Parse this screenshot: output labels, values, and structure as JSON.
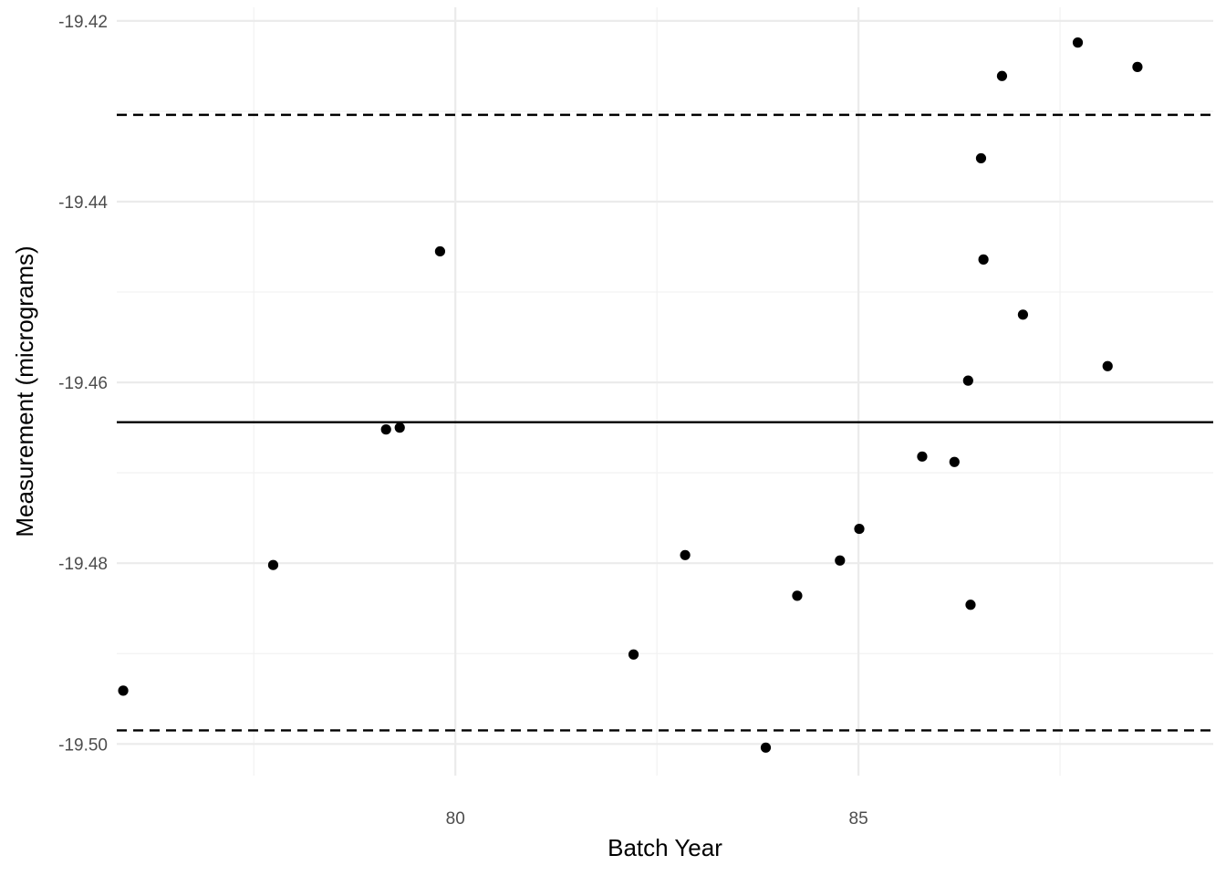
{
  "chart_data": {
    "type": "scatter",
    "xlabel": "Batch Year",
    "ylabel": "Measurement (micrograms)",
    "xlim": [
      75.8,
      89.4
    ],
    "ylim": [
      -19.5035,
      -19.4185
    ],
    "x_ticks": [
      80,
      85
    ],
    "x_tick_labels": [
      "80",
      "85"
    ],
    "y_ticks": [
      -19.42,
      -19.44,
      -19.46,
      -19.48,
      -19.5
    ],
    "y_tick_labels": [
      "-19.42",
      "-19.44",
      "-19.46",
      "-19.48",
      "-19.50"
    ],
    "grid": true,
    "mean_line": -19.4644,
    "upper_limit_line": -19.4304,
    "lower_limit_line": -19.4985,
    "points": [
      {
        "x": 75.88,
        "y": -19.4941
      },
      {
        "x": 77.74,
        "y": -19.4802
      },
      {
        "x": 79.14,
        "y": -19.4652
      },
      {
        "x": 79.31,
        "y": -19.465
      },
      {
        "x": 79.81,
        "y": -19.4455
      },
      {
        "x": 82.21,
        "y": -19.4901
      },
      {
        "x": 82.85,
        "y": -19.4791
      },
      {
        "x": 83.85,
        "y": -19.5004
      },
      {
        "x": 84.24,
        "y": -19.4836
      },
      {
        "x": 84.77,
        "y": -19.4797
      },
      {
        "x": 85.01,
        "y": -19.4762
      },
      {
        "x": 85.79,
        "y": -19.4682
      },
      {
        "x": 86.19,
        "y": -19.4688
      },
      {
        "x": 86.36,
        "y": -19.4598
      },
      {
        "x": 86.39,
        "y": -19.4846
      },
      {
        "x": 86.52,
        "y": -19.4352
      },
      {
        "x": 86.55,
        "y": -19.4464
      },
      {
        "x": 86.78,
        "y": -19.4261
      },
      {
        "x": 87.04,
        "y": -19.4525
      },
      {
        "x": 87.72,
        "y": -19.4224
      },
      {
        "x": 88.09,
        "y": -19.4582
      },
      {
        "x": 88.46,
        "y": -19.4251
      }
    ],
    "colors": {
      "points": "#000000",
      "reference_lines": "#000000",
      "grid_major": "#ebebeb",
      "grid_minor": "#f2f2f2"
    }
  }
}
